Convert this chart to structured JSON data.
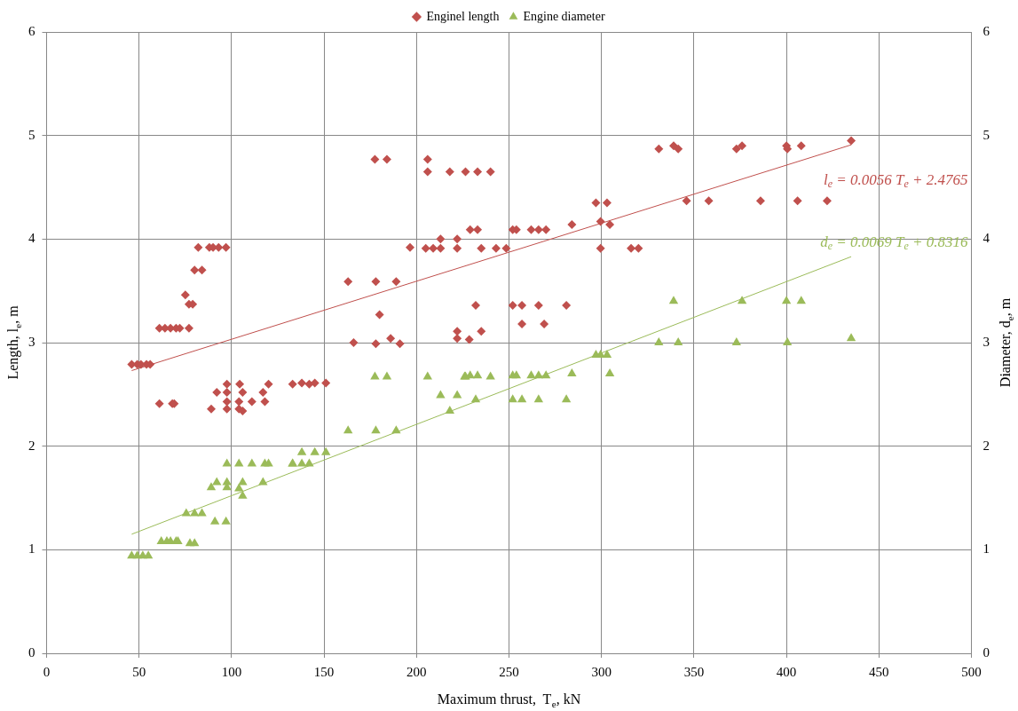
{
  "chart_data": {
    "type": "scatter",
    "xlabel": "Maximum thrust,  T$_{e}$, kN",
    "ylabel": "Length, l$_{e}$, m",
    "y2label": "Diameter, d$_{e}$, m",
    "xlim": [
      0,
      500
    ],
    "xticks": [
      0,
      50,
      100,
      150,
      200,
      250,
      300,
      350,
      400,
      450,
      500
    ],
    "ylim": [
      0,
      6
    ],
    "yticks": [
      0,
      1,
      2,
      3,
      4,
      5,
      6
    ],
    "y2lim": [
      0,
      6
    ],
    "y2ticks": [
      0,
      1,
      2,
      3,
      4,
      5,
      6
    ],
    "grid": true,
    "legend": "top",
    "series": [
      {
        "name": "Enginel length",
        "color": "#c0504d",
        "marker": "diamond",
        "x": [
          46,
          49,
          51,
          54,
          56,
          61,
          64,
          67,
          70,
          72,
          77,
          75,
          77,
          79,
          80,
          84,
          82,
          88,
          90,
          93,
          97,
          61,
          68,
          69,
          89,
          97.5,
          104,
          106,
          92,
          97.5,
          106,
          117,
          97.5,
          104,
          111,
          118,
          97.5,
          104.4,
          120,
          133,
          138,
          142,
          145,
          151,
          177.5,
          184,
          206,
          206,
          218,
          226.5,
          233,
          240,
          213,
          222,
          196.5,
          205,
          209,
          213,
          222,
          163,
          178,
          189,
          180,
          166,
          178,
          186,
          191,
          222,
          222,
          229,
          233,
          252,
          254,
          262,
          266,
          270,
          235,
          243,
          248.5,
          284,
          297,
          303,
          299.5,
          304.5,
          299.5,
          316,
          320,
          232,
          252,
          257,
          266,
          281,
          257,
          269,
          235,
          228.5,
          331,
          339,
          341.5,
          373,
          376,
          400,
          400.5,
          408,
          435,
          346,
          358,
          386,
          406,
          422
        ],
        "values": [
          2.79,
          2.79,
          2.79,
          2.79,
          2.79,
          3.14,
          3.14,
          3.14,
          3.14,
          3.14,
          3.14,
          3.46,
          3.37,
          3.37,
          3.7,
          3.7,
          3.92,
          3.92,
          3.92,
          3.92,
          3.92,
          2.41,
          2.41,
          2.41,
          2.36,
          2.36,
          2.36,
          2.34,
          2.52,
          2.52,
          2.52,
          2.52,
          2.43,
          2.43,
          2.43,
          2.43,
          2.6,
          2.6,
          2.6,
          2.6,
          2.61,
          2.6,
          2.61,
          2.61,
          4.77,
          4.77,
          4.77,
          4.65,
          4.65,
          4.65,
          4.65,
          4.65,
          4.0,
          4.0,
          3.92,
          3.91,
          3.91,
          3.91,
          3.91,
          3.59,
          3.59,
          3.59,
          3.27,
          3.0,
          2.99,
          3.04,
          2.99,
          3.11,
          3.04,
          4.09,
          4.09,
          4.09,
          4.09,
          4.09,
          4.09,
          4.09,
          3.91,
          3.91,
          3.91,
          4.14,
          4.35,
          4.35,
          4.17,
          4.14,
          3.91,
          3.91,
          3.91,
          3.36,
          3.36,
          3.36,
          3.36,
          3.36,
          3.18,
          3.18,
          3.11,
          3.03,
          4.87,
          4.9,
          4.87,
          4.87,
          4.9,
          4.9,
          4.87,
          4.9,
          4.95,
          4.37,
          4.37,
          4.37,
          4.37,
          4.37
        ]
      },
      {
        "name": "Engine diameter",
        "color": "#9bbb59",
        "marker": "triangle",
        "x": [
          177.5,
          184,
          206,
          226,
          213,
          222,
          218,
          163,
          178,
          189,
          138,
          145,
          151,
          133,
          138,
          142,
          97.5,
          104,
          111,
          118,
          120,
          133,
          92,
          97.5,
          106,
          117,
          89,
          97.5,
          104,
          106,
          75.5,
          80,
          84,
          91,
          97,
          62,
          65,
          67,
          70,
          71,
          77.5,
          80,
          46,
          49,
          52,
          55,
          226.5,
          229,
          233,
          240,
          252,
          254,
          262,
          266,
          270,
          284,
          297,
          299.5,
          303,
          304.5,
          232,
          252,
          257,
          266,
          281,
          339,
          376,
          400,
          408,
          331,
          341.5,
          373,
          400.5,
          435
        ],
        "values": [
          2.67,
          2.67,
          2.67,
          2.67,
          2.49,
          2.49,
          2.34,
          2.15,
          2.15,
          2.15,
          1.94,
          1.94,
          1.94,
          1.83,
          1.83,
          1.83,
          1.83,
          1.83,
          1.83,
          1.83,
          1.83,
          1.83,
          1.65,
          1.65,
          1.65,
          1.65,
          1.6,
          1.6,
          1.59,
          1.52,
          1.35,
          1.35,
          1.35,
          1.27,
          1.27,
          1.08,
          1.08,
          1.08,
          1.08,
          1.08,
          1.06,
          1.06,
          0.94,
          0.94,
          0.94,
          0.94,
          2.67,
          2.68,
          2.68,
          2.67,
          2.68,
          2.68,
          2.68,
          2.68,
          2.68,
          2.7,
          2.88,
          2.88,
          2.88,
          2.7,
          2.45,
          2.45,
          2.45,
          2.45,
          2.45,
          3.4,
          3.4,
          3.4,
          3.4,
          3.0,
          3.0,
          3.0,
          3.0,
          3.04
        ]
      },
      {
        "type": "line",
        "color": "#c0504d",
        "marker": "none",
        "x": [
          46,
          435
        ],
        "values": [
          2.73,
          4.91
        ]
      },
      {
        "type": "line",
        "color": "#9bbb59",
        "marker": "none",
        "x": [
          46,
          435
        ],
        "values": [
          1.15,
          3.83
        ]
      }
    ],
    "annotations": [
      "l$_{e}$ = 0.0056 T$_{e}$ + 2.4765",
      "d$_{e}$ = 0.0069 T$_{e}$ + 0.8316"
    ]
  }
}
